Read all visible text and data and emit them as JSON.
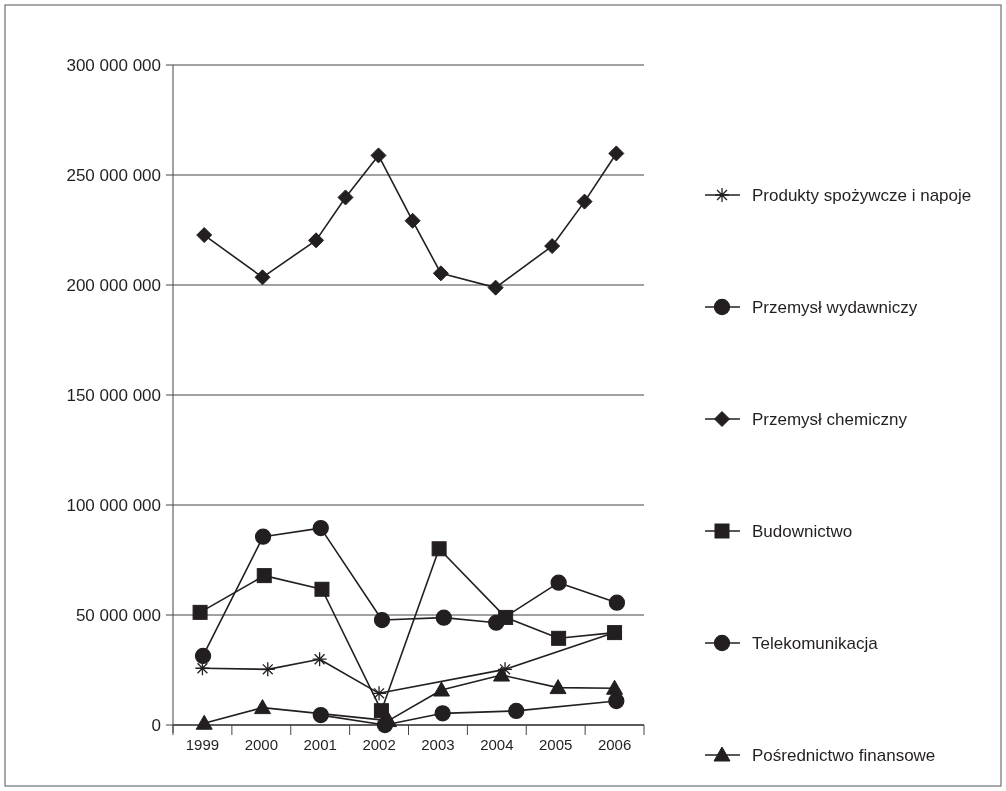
{
  "chart_data": {
    "type": "line",
    "xlim": [
      1998.5,
      2006.5
    ],
    "xticks": [
      {
        "value": 1998.5,
        "label": null
      },
      {
        "value": 1999,
        "label": "1999"
      },
      {
        "value": 1999.5,
        "label": null
      },
      {
        "value": 2000,
        "label": "2000"
      },
      {
        "value": 2000.5,
        "label": null
      },
      {
        "value": 2001,
        "label": "2001"
      },
      {
        "value": 2001.5,
        "label": null
      },
      {
        "value": 2002,
        "label": "2002"
      },
      {
        "value": 2002.5,
        "label": null
      },
      {
        "value": 2003,
        "label": "2003"
      },
      {
        "value": 2003.5,
        "label": null
      },
      {
        "value": 2004,
        "label": "2004"
      },
      {
        "value": 2004.5,
        "label": null
      },
      {
        "value": 2005,
        "label": "2005"
      },
      {
        "value": 2005.5,
        "label": null
      },
      {
        "value": 2006,
        "label": "2006"
      },
      {
        "value": 2006.5,
        "label": null
      }
    ],
    "ylim": [
      0,
      300000000
    ],
    "yticks": [
      0,
      {
        "value": 50000000,
        "label": "50 000 000"
      },
      {
        "value": 100000000,
        "label": "100 000 000"
      },
      {
        "value": 150000000,
        "label": "150 000 000"
      },
      {
        "value": 200000000,
        "label": "200 000 000"
      },
      {
        "value": 250000000,
        "label": "250 000 000"
      },
      {
        "value": 300000000,
        "label": "300 000 000"
      }
    ],
    "grid": "y",
    "legend": "right",
    "line_style": "solid",
    "series": [
      {
        "name": "Produkty spożywcze i napoje",
        "color": "#231f20",
        "marker": "cross",
        "x": [
          1999.0,
          2000.11,
          2000.99,
          2002.0,
          2004.14,
          2006.0
        ],
        "values": [
          25800000,
          25300000,
          29900000,
          14400000,
          25300000,
          42000000
        ]
      },
      {
        "name": "Przemysł wydawniczy",
        "color": "#231f20",
        "marker": "circle",
        "x": [
          2001.01,
          2002.1,
          2003.08,
          2004.33,
          2006.03
        ],
        "values": [
          4500000,
          0,
          5300000,
          6400000,
          10900000
        ]
      },
      {
        "name": "Przemysł chemiczny",
        "color": "#231f20",
        "marker": "diamond",
        "x": [
          1999.03,
          2000.02,
          2000.93,
          2001.43,
          2001.99,
          2002.57,
          2003.05,
          2003.98,
          2004.94,
          2005.49,
          2006.03
        ],
        "values": [
          222700000,
          203500000,
          220300000,
          239800000,
          258900000,
          229200000,
          205300000,
          198800000,
          217700000,
          237900000,
          259800000
        ]
      },
      {
        "name": "Budownictwo",
        "color": "#231f20",
        "marker": "square",
        "x": [
          1998.96,
          2000.05,
          2001.03,
          2002.04,
          2003.02,
          2004.15,
          2005.05,
          2006.0
        ],
        "values": [
          51200000,
          67900000,
          61700000,
          6500000,
          80100000,
          48900000,
          39400000,
          42000000
        ]
      },
      {
        "name": "Telekomunikacja",
        "color": "#231f20",
        "marker": "circle",
        "x": [
          1999.01,
          2000.03,
          2001.01,
          2002.05,
          2003.1,
          2003.99,
          2005.05,
          2006.04
        ],
        "values": [
          31400000,
          85600000,
          89500000,
          47700000,
          48800000,
          46500000,
          64700000,
          55600000
        ]
      },
      {
        "name": "Pośrednictwo finansowe",
        "color": "#231f20",
        "marker": "triangle",
        "x": [
          1999.03,
          2000.02,
          2002.16,
          2003.06,
          2004.08,
          2005.04,
          2006.0
        ],
        "values": [
          800000,
          7900000,
          2000000,
          15900000,
          22700000,
          17000000,
          16700000
        ]
      }
    ]
  }
}
